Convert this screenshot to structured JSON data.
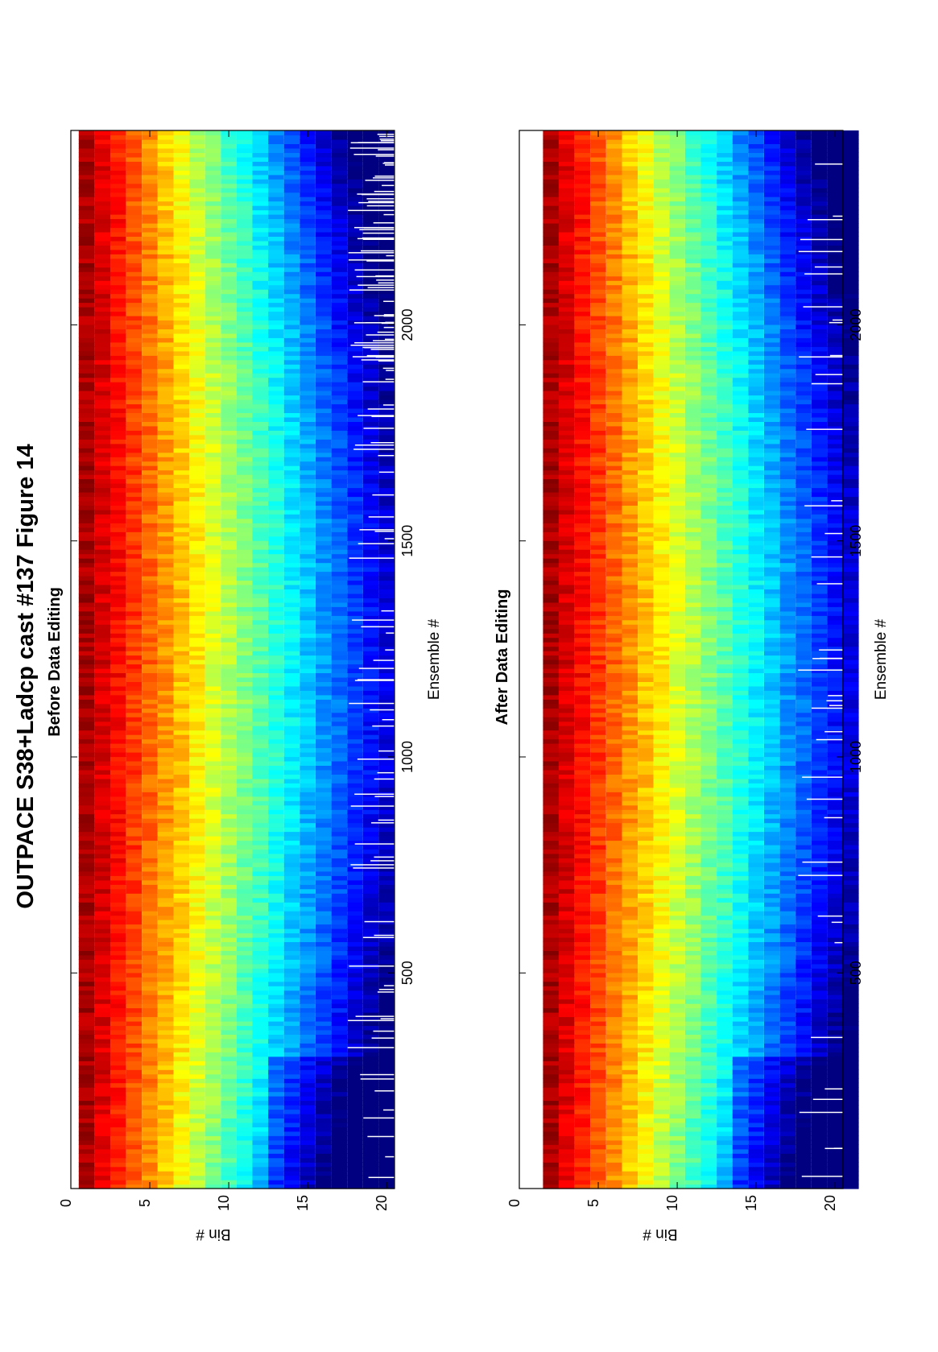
{
  "figure": {
    "title": "OUTPACE S38+Ladcp cast #137  Figure 14"
  },
  "colors": {
    "colormap": "jet",
    "background": "#ffffff",
    "axis": "#000000",
    "gap": "#ffffff"
  },
  "chart_data": [
    {
      "type": "heatmap",
      "title": "Before Data Editing",
      "xlabel": "Ensemble #",
      "ylabel": "Bin #",
      "xlim": [
        1,
        2450
      ],
      "ylim": [
        0,
        20.5
      ],
      "xticks": [
        500,
        1000,
        1500,
        2000
      ],
      "yticks": [
        0,
        5,
        10,
        15,
        20
      ],
      "bins": 20,
      "colormap": "jet",
      "grid": false,
      "orientation": "rotated 90° counter-clockwise",
      "has_gaps": true
    },
    {
      "type": "heatmap",
      "title": "After Data Editing",
      "xlabel": "Ensemble #",
      "ylabel": "Bin #",
      "xlim": [
        1,
        2450
      ],
      "ylim": [
        0,
        20.5
      ],
      "xticks": [
        500,
        1000,
        1500,
        2000
      ],
      "yticks": [
        0,
        5,
        10,
        15,
        20
      ],
      "bins": 20,
      "colormap": "jet",
      "grid": false,
      "orientation": "rotated 90° counter-clockwise",
      "has_gaps": true
    }
  ]
}
